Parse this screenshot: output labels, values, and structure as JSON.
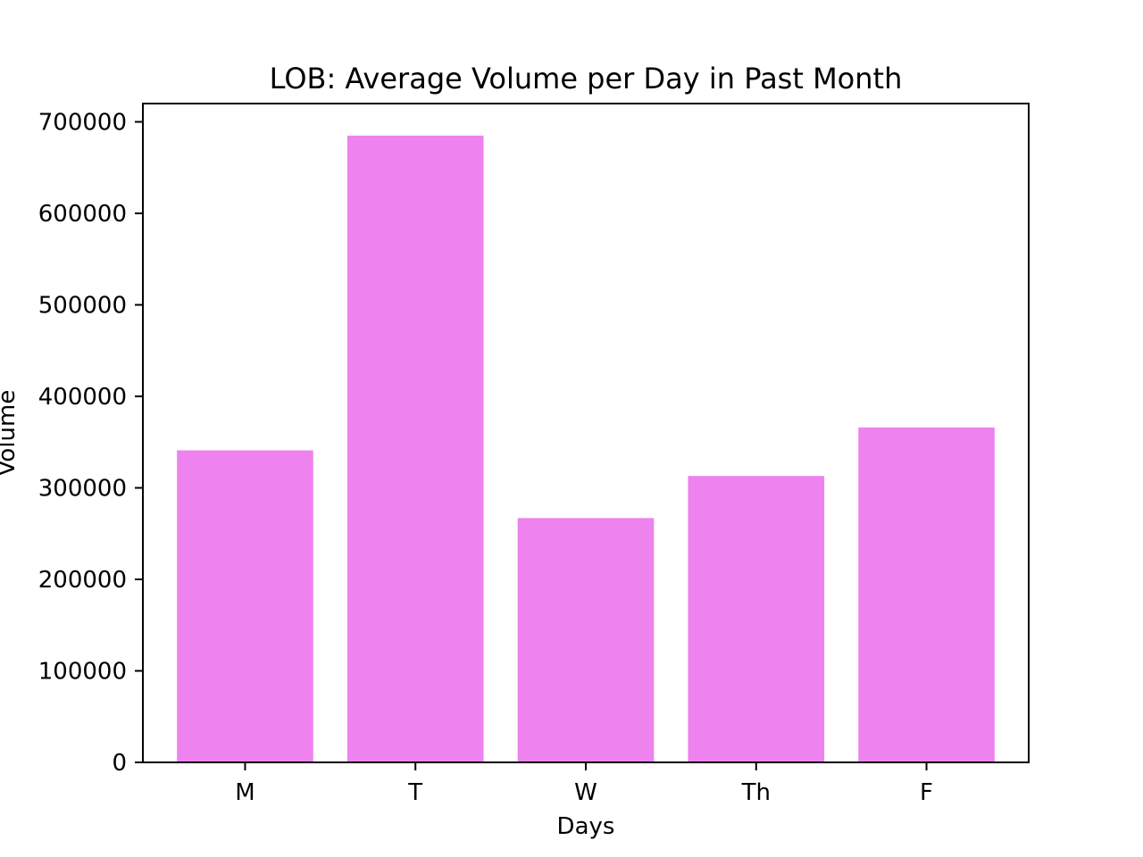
{
  "chart_data": {
    "type": "bar",
    "title": "LOB: Average Volume per Day in Past Month",
    "xlabel": "Days",
    "ylabel": "Volume",
    "categories": [
      "M",
      "T",
      "W",
      "Th",
      "F"
    ],
    "values": [
      341000,
      685000,
      267000,
      313000,
      366000
    ],
    "ylim": [
      0,
      720000
    ],
    "yticks": [
      0,
      100000,
      200000,
      300000,
      400000,
      500000,
      600000,
      700000
    ],
    "ytick_labels": [
      "0",
      "100000",
      "200000",
      "300000",
      "400000",
      "500000",
      "600000",
      "700000"
    ],
    "bar_color": "#ee82ee",
    "grid": false,
    "legend": "none"
  }
}
